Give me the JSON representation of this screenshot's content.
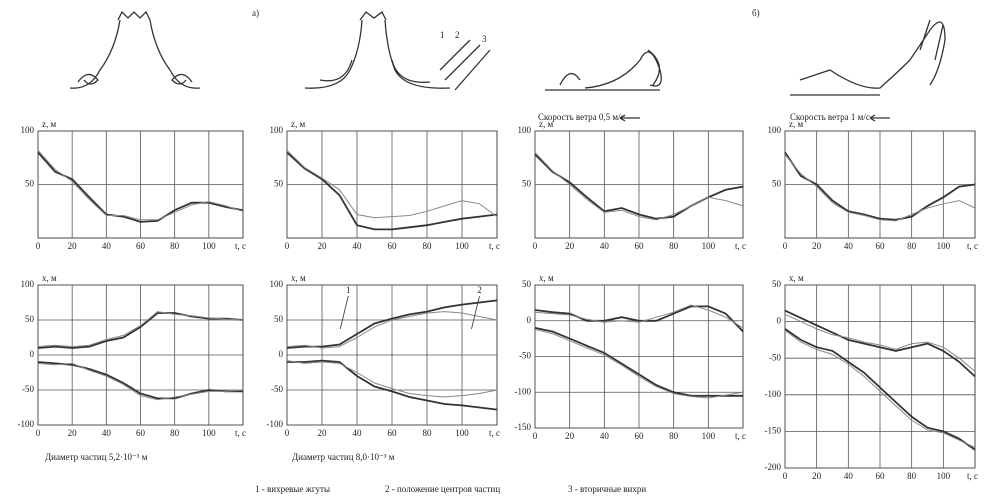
{
  "figure": {
    "panel_labels": [
      "а)",
      "б)"
    ],
    "sketch_labels": [
      "1",
      "2",
      "3"
    ],
    "wind_labels": [
      "Скорость ветра 0,5 м/с",
      "Скорость ветра 1 м/с"
    ],
    "diameter_labels": [
      "Диаметр частиц 5,2·10⁻³ м",
      "Диаметр частиц 8,0·10⁻³ м"
    ],
    "legend": [
      "1 - вихревые жгуты",
      "2 - положение центров частиц",
      "3 - вторичные вихри"
    ]
  },
  "chart_data": [
    {
      "type": "line",
      "ylabel": "z, м",
      "xlabel": "t, с",
      "grid": true,
      "x": [
        0,
        10,
        20,
        30,
        40,
        50,
        60,
        70,
        80,
        90,
        100,
        110,
        120
      ],
      "xlim": [
        0,
        120
      ],
      "xticks": [
        0,
        20,
        40,
        60,
        80,
        100
      ],
      "ylim": [
        0,
        100
      ],
      "yticks": [
        50,
        100
      ],
      "series": [
        {
          "color": "#333333",
          "values": [
            80,
            62,
            55,
            38,
            22,
            20,
            15,
            16,
            26,
            33,
            33,
            29,
            26
          ]
        },
        {
          "color": "#888888",
          "values": [
            82,
            64,
            53,
            36,
            21,
            21,
            17,
            17,
            24,
            31,
            34,
            30,
            25
          ]
        }
      ]
    },
    {
      "type": "line",
      "ylabel": "z, м",
      "xlabel": "t, с",
      "grid": true,
      "x": [
        0,
        10,
        20,
        30,
        40,
        50,
        60,
        70,
        80,
        90,
        100,
        110,
        120
      ],
      "xlim": [
        0,
        120
      ],
      "xticks": [
        0,
        20,
        40,
        60,
        80,
        100
      ],
      "ylim": [
        0,
        100
      ],
      "yticks": [
        50,
        100
      ],
      "series": [
        {
          "color": "#333333",
          "values": [
            80,
            65,
            55,
            40,
            12,
            8,
            8,
            10,
            12,
            15,
            18,
            20,
            22
          ]
        },
        {
          "color": "#888888",
          "values": [
            82,
            66,
            56,
            45,
            22,
            19,
            20,
            21,
            25,
            30,
            35,
            32,
            20
          ]
        }
      ]
    },
    {
      "type": "line",
      "ylabel": "z, м",
      "xlabel": "t, с",
      "grid": true,
      "x": [
        0,
        10,
        20,
        30,
        40,
        50,
        60,
        70,
        80,
        90,
        100,
        110,
        120
      ],
      "xlim": [
        0,
        120
      ],
      "xticks": [
        0,
        20,
        40,
        60,
        80,
        100
      ],
      "ylim": [
        0,
        100
      ],
      "yticks": [
        50,
        100
      ],
      "series": [
        {
          "color": "#333333",
          "values": [
            78,
            62,
            52,
            38,
            25,
            28,
            22,
            18,
            20,
            30,
            38,
            45,
            48
          ]
        },
        {
          "color": "#888888",
          "values": [
            80,
            63,
            50,
            36,
            24,
            26,
            20,
            17,
            22,
            30,
            38,
            35,
            30
          ]
        }
      ]
    },
    {
      "type": "line",
      "ylabel": "z, м",
      "xlabel": "t, с",
      "grid": true,
      "x": [
        0,
        10,
        20,
        30,
        40,
        50,
        60,
        70,
        80,
        90,
        100,
        110,
        120
      ],
      "xlim": [
        0,
        120
      ],
      "xticks": [
        0,
        20,
        40,
        60,
        80,
        100
      ],
      "ylim": [
        0,
        100
      ],
      "yticks": [
        50,
        100
      ],
      "series": [
        {
          "color": "#333333",
          "values": [
            80,
            58,
            50,
            35,
            25,
            22,
            18,
            17,
            20,
            30,
            38,
            48,
            50
          ]
        },
        {
          "color": "#888888",
          "values": [
            78,
            60,
            48,
            33,
            24,
            21,
            17,
            16,
            22,
            28,
            32,
            35,
            28
          ]
        }
      ]
    },
    {
      "type": "line",
      "ylabel": "x, м",
      "xlabel": "t, с",
      "grid": true,
      "x": [
        0,
        10,
        20,
        30,
        40,
        50,
        60,
        70,
        80,
        90,
        100,
        110,
        120
      ],
      "xlim": [
        0,
        120
      ],
      "xticks": [
        0,
        20,
        40,
        60,
        80,
        100
      ],
      "ylim": [
        -100,
        100
      ],
      "yticks": [
        -100,
        -50,
        0,
        50,
        100
      ],
      "series": [
        {
          "color": "#333333",
          "values": [
            10,
            12,
            10,
            12,
            20,
            25,
            40,
            60,
            60,
            55,
            52,
            52,
            50
          ]
        },
        {
          "color": "#888888",
          "values": [
            12,
            14,
            12,
            14,
            22,
            28,
            42,
            62,
            58,
            56,
            53,
            51,
            50
          ]
        },
        {
          "color": "#333333",
          "values": [
            -10,
            -12,
            -14,
            -20,
            -28,
            -40,
            -55,
            -62,
            -62,
            -55,
            -50,
            -52,
            -52
          ]
        },
        {
          "color": "#888888",
          "values": [
            -12,
            -14,
            -12,
            -22,
            -30,
            -42,
            -58,
            -64,
            -60,
            -56,
            -52,
            -52,
            -50
          ]
        }
      ]
    },
    {
      "type": "line",
      "ylabel": "x, м",
      "xlabel": "t, с",
      "grid": true,
      "x": [
        0,
        10,
        20,
        30,
        40,
        50,
        60,
        70,
        80,
        90,
        100,
        110,
        120
      ],
      "xlim": [
        0,
        120
      ],
      "xticks": [
        0,
        20,
        40,
        60,
        80,
        100
      ],
      "ylim": [
        -100,
        100
      ],
      "yticks": [
        -100,
        -50,
        0,
        50,
        100
      ],
      "annotations": [
        "1",
        "2"
      ],
      "series": [
        {
          "color": "#333333",
          "values": [
            10,
            12,
            12,
            15,
            30,
            45,
            52,
            58,
            62,
            68,
            72,
            75,
            78
          ]
        },
        {
          "color": "#888888",
          "values": [
            12,
            14,
            10,
            12,
            25,
            40,
            50,
            55,
            60,
            62,
            60,
            55,
            50
          ]
        },
        {
          "color": "#333333",
          "values": [
            -10,
            -10,
            -8,
            -10,
            -30,
            -45,
            -52,
            -60,
            -65,
            -70,
            -72,
            -75,
            -78
          ]
        },
        {
          "color": "#888888",
          "values": [
            -8,
            -12,
            -10,
            -12,
            -25,
            -40,
            -48,
            -55,
            -58,
            -60,
            -58,
            -55,
            -50
          ]
        }
      ]
    },
    {
      "type": "line",
      "ylabel": "x, м",
      "xlabel": "t, с",
      "grid": true,
      "x": [
        0,
        10,
        20,
        30,
        40,
        50,
        60,
        70,
        80,
        90,
        100,
        110,
        120
      ],
      "xlim": [
        0,
        120
      ],
      "xticks": [
        0,
        20,
        40,
        60,
        80,
        100
      ],
      "ylim": [
        -150,
        50
      ],
      "yticks": [
        -150,
        -100,
        -50,
        0,
        50
      ],
      "series": [
        {
          "color": "#333333",
          "values": [
            15,
            12,
            10,
            0,
            0,
            5,
            0,
            0,
            10,
            20,
            20,
            10,
            -15
          ]
        },
        {
          "color": "#888888",
          "values": [
            12,
            10,
            8,
            2,
            -2,
            0,
            -2,
            5,
            12,
            22,
            15,
            5,
            -10
          ]
        },
        {
          "color": "#333333",
          "values": [
            -10,
            -15,
            -25,
            -35,
            -45,
            -60,
            -75,
            -90,
            -100,
            -105,
            -105,
            -105,
            -105
          ]
        },
        {
          "color": "#888888",
          "values": [
            -12,
            -18,
            -28,
            -38,
            -48,
            -62,
            -78,
            -92,
            -102,
            -106,
            -108,
            -104,
            -100
          ]
        }
      ]
    },
    {
      "type": "line",
      "ylabel": "x, м",
      "xlabel": "t, с",
      "grid": true,
      "x": [
        0,
        10,
        20,
        30,
        40,
        50,
        60,
        70,
        80,
        90,
        100,
        110,
        120
      ],
      "xlim": [
        0,
        120
      ],
      "xticks": [
        0,
        20,
        40,
        60,
        80,
        100
      ],
      "ylim": [
        -200,
        50
      ],
      "yticks": [
        -200,
        -150,
        -100,
        -50,
        0,
        50
      ],
      "series": [
        {
          "color": "#333333",
          "values": [
            15,
            5,
            -5,
            -15,
            -25,
            -30,
            -35,
            -40,
            -35,
            -30,
            -40,
            -55,
            -75
          ]
        },
        {
          "color": "#888888",
          "values": [
            10,
            0,
            -10,
            -18,
            -22,
            -28,
            -32,
            -38,
            -30,
            -28,
            -35,
            -50,
            -68
          ]
        },
        {
          "color": "#333333",
          "values": [
            -10,
            -25,
            -35,
            -40,
            -55,
            -70,
            -90,
            -110,
            -130,
            -145,
            -150,
            -160,
            -175
          ]
        },
        {
          "color": "#888888",
          "values": [
            -12,
            -28,
            -38,
            -45,
            -58,
            -75,
            -95,
            -115,
            -135,
            -148,
            -152,
            -162,
            -172
          ]
        }
      ]
    }
  ]
}
